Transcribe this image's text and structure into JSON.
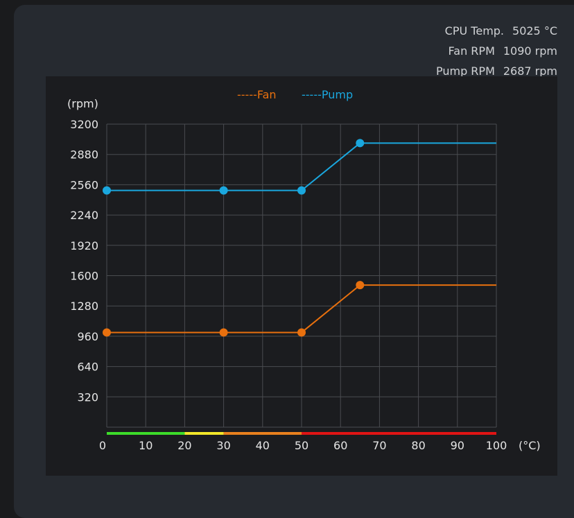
{
  "stats": [
    {
      "label": "CPU Temp.",
      "value": "5025 °C"
    },
    {
      "label": "Fan RPM",
      "value": "1090 rpm"
    },
    {
      "label": "Pump RPM",
      "value": "2687 rpm"
    }
  ],
  "chart_data": {
    "type": "line",
    "ylabel": "(rpm)",
    "xlabel": "(°C)",
    "xlim": [
      0,
      100
    ],
    "ylim": [
      0,
      3200
    ],
    "xticks": [
      0,
      10,
      20,
      30,
      40,
      50,
      60,
      70,
      80,
      90,
      100
    ],
    "yticks": [
      320,
      640,
      960,
      1280,
      1600,
      1920,
      2240,
      2560,
      2880,
      3200
    ],
    "grid": true,
    "legend": "top",
    "series": [
      {
        "name": "-----Fan",
        "color": "#e8700e",
        "points": [
          [
            0,
            1000
          ],
          [
            30,
            1000
          ],
          [
            50,
            1000
          ],
          [
            65,
            1500
          ]
        ],
        "extend_to": 100
      },
      {
        "name": "-----Pump",
        "color": "#1aa7de",
        "points": [
          [
            0,
            2500
          ],
          [
            30,
            2500
          ],
          [
            50,
            2500
          ],
          [
            65,
            3000
          ]
        ],
        "extend_to": 100
      }
    ],
    "temp_bar": [
      {
        "from": 0,
        "to": 20,
        "color": "#3ddc2a"
      },
      {
        "from": 20,
        "to": 30,
        "color": "#f2e62a"
      },
      {
        "from": 30,
        "to": 50,
        "color": "#e8801e"
      },
      {
        "from": 50,
        "to": 100,
        "color": "#e01414"
      }
    ]
  }
}
